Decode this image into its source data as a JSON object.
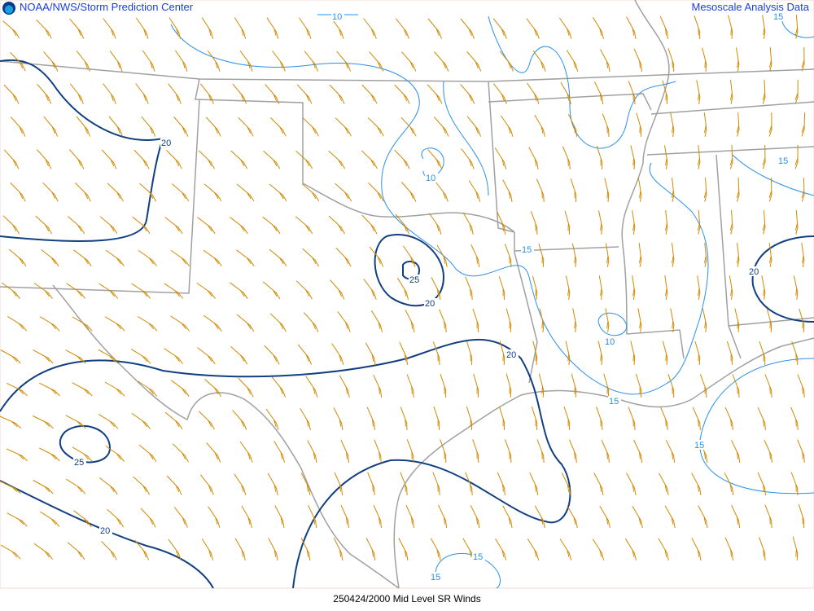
{
  "header": {
    "left_title": "NOAA/NWS/Storm Prediction Center",
    "right_title": "Mesoscale Analysis Data",
    "logo_icon": "noaa-logo-icon"
  },
  "footer": {
    "caption": "250424/2000 Mid Level SR Winds"
  },
  "colors": {
    "barbs": "#d08a00",
    "strong_contour": "#123f80",
    "weak_contour": "#2a90e8",
    "borders": "#a0a0a0",
    "title_text": "#1a3fd8"
  },
  "contour_labels": {
    "strong": [
      "20",
      "25",
      "20",
      "20",
      "25",
      "20",
      "20"
    ],
    "weak": [
      "10",
      "15",
      "10",
      "15",
      "15",
      "10",
      "15",
      "15",
      "15",
      "15"
    ]
  }
}
